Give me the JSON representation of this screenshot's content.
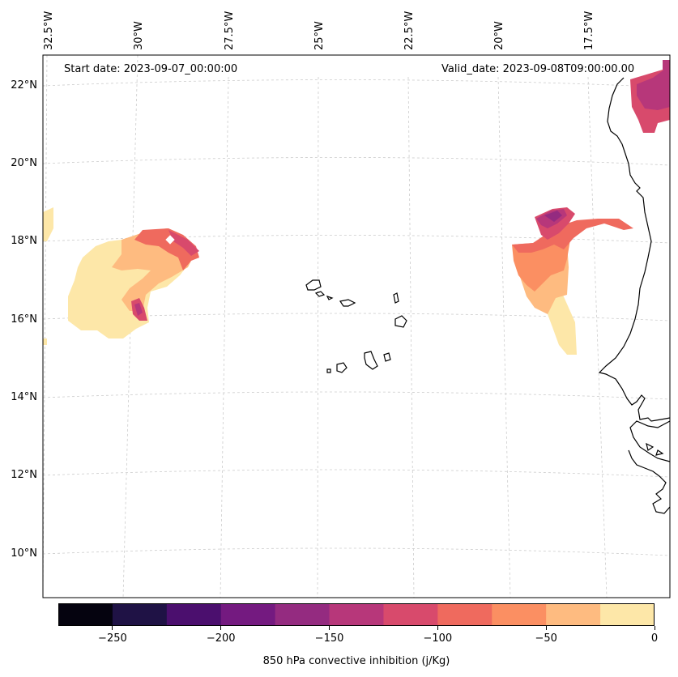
{
  "map": {
    "start_label": "Start date: 2023-09-07_00:00:00",
    "valid_label": "Valid_date: 2023-09-08T09:00:00.00",
    "lon_labels": [
      "32.5°W",
      "30°W",
      "27.5°W",
      "25°W",
      "22.5°W",
      "20°W",
      "17.5°W"
    ],
    "lat_labels": [
      "22°N",
      "20°N",
      "18°N",
      "16°N",
      "14°N",
      "12°N",
      "10°N"
    ],
    "extent": {
      "lon_min": -32.8,
      "lon_max": -16.4,
      "lat_min": 8.9,
      "lat_max": 22.8
    }
  },
  "colorbar": {
    "label": "850 hPa convective inhibition (j/Kg)",
    "tick_labels": [
      "−250",
      "−200",
      "−150",
      "−100",
      "−50",
      "0"
    ],
    "tick_values": [
      -250,
      -200,
      -150,
      -100,
      -50,
      0
    ],
    "range": [
      -275,
      0
    ],
    "step": 25,
    "colors": [
      "#05030f",
      "#1f1245",
      "#4b0f6e",
      "#741a80",
      "#942b80",
      "#b7377a",
      "#d84a6c",
      "#ef6a5e",
      "#fb8f62",
      "#febb80",
      "#fde7a8"
    ]
  },
  "colors": {
    "land_outline": "#000000",
    "grid": "#cccccc"
  }
}
